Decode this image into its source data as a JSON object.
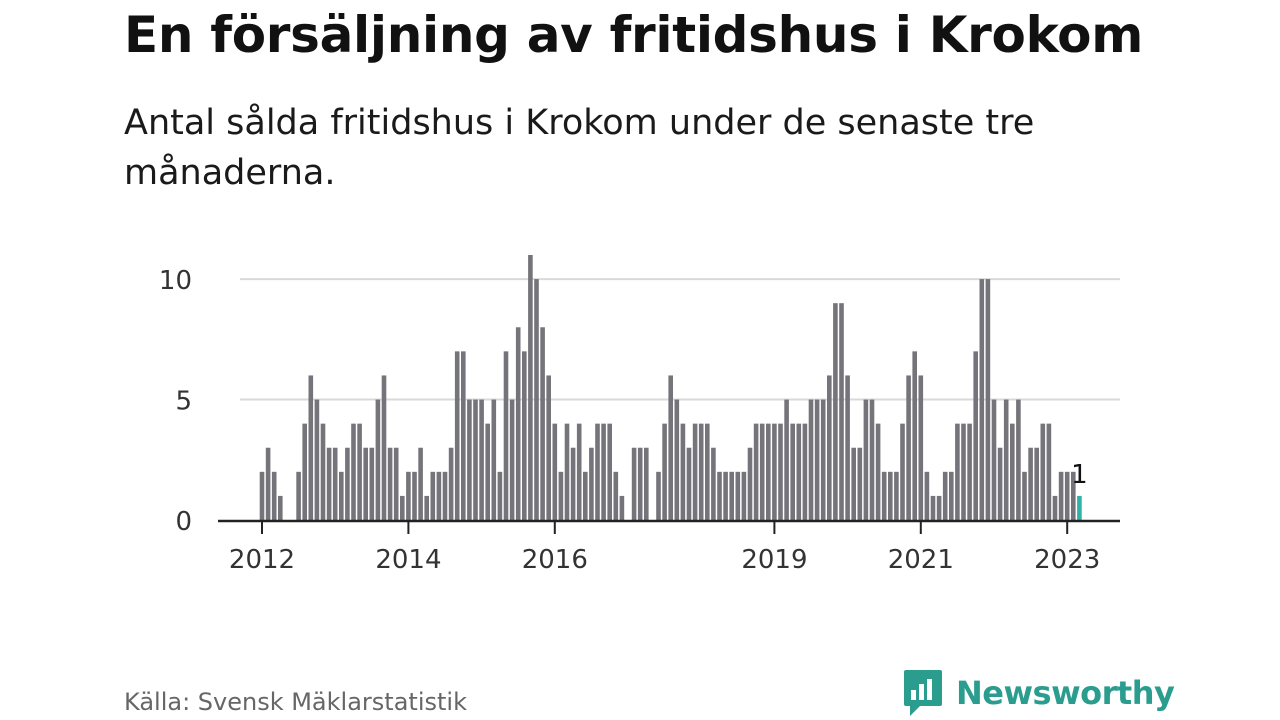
{
  "title": "En försäljning av fritidshus i Krokom",
  "subtitle": "Antal sålda fritidshus i Krokom under de senaste tre månaderna.",
  "source": "Källa: Svensk Mäklarstatistik",
  "brand": {
    "name": "Newsworthy",
    "icon": "newsworthy-logo-icon"
  },
  "colors": {
    "bar": "#75747a",
    "highlight": "#2fb1a6",
    "grid": "#d9d9d9",
    "axis": "#222222",
    "brand": "#2a9d8f"
  },
  "chart_data": {
    "type": "bar",
    "title": "En försäljning av fritidshus i Krokom",
    "xlabel": "",
    "ylabel": "",
    "ylim": [
      0,
      11
    ],
    "yticks": [
      0,
      5,
      10
    ],
    "grid": true,
    "legend": "none",
    "x_start": "2012-01",
    "xticks": [
      {
        "label": "2012",
        "date": "2012-01"
      },
      {
        "label": "2014",
        "date": "2014-01"
      },
      {
        "label": "2016",
        "date": "2016-01"
      },
      {
        "label": "2019",
        "date": "2019-01"
      },
      {
        "label": "2021",
        "date": "2021-01"
      },
      {
        "label": "2023",
        "date": "2023-01"
      }
    ],
    "values": [
      2,
      3,
      2,
      1,
      0,
      0,
      2,
      4,
      6,
      5,
      4,
      3,
      3,
      2,
      3,
      4,
      4,
      3,
      3,
      5,
      6,
      3,
      3,
      1,
      2,
      2,
      3,
      1,
      2,
      2,
      2,
      3,
      7,
      7,
      5,
      5,
      5,
      4,
      5,
      2,
      7,
      5,
      8,
      7,
      11,
      10,
      8,
      6,
      4,
      2,
      4,
      3,
      4,
      2,
      3,
      4,
      4,
      4,
      2,
      1,
      0,
      3,
      3,
      3,
      0,
      2,
      4,
      6,
      5,
      4,
      3,
      4,
      4,
      4,
      3,
      2,
      2,
      2,
      2,
      2,
      3,
      4,
      4,
      4,
      4,
      4,
      5,
      4,
      4,
      4,
      5,
      5,
      5,
      6,
      9,
      9,
      6,
      3,
      3,
      5,
      5,
      4,
      2,
      2,
      2,
      4,
      6,
      7,
      6,
      2,
      1,
      1,
      2,
      2,
      4,
      4,
      4,
      7,
      10,
      10,
      5,
      3,
      5,
      4,
      5,
      2,
      3,
      3,
      4,
      4,
      1,
      2,
      2,
      2,
      1
    ],
    "highlight_last": true,
    "annotations": [
      {
        "label": "1",
        "target": "last"
      }
    ]
  }
}
